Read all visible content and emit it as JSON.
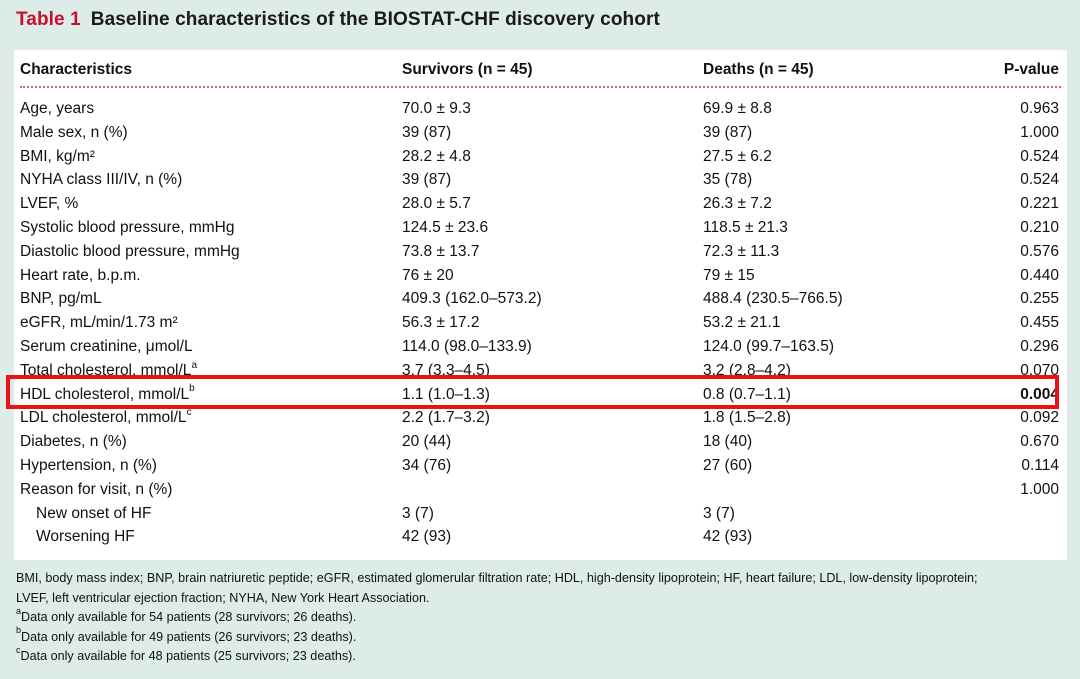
{
  "title": {
    "number": "Table 1",
    "text": "Baseline characteristics of the BIOSTAT-CHF discovery cohort"
  },
  "headers": {
    "characteristics": "Characteristics",
    "survivors": "Survivors (n = 45)",
    "deaths": "Deaths (n = 45)",
    "pvalue": "P-value"
  },
  "rows": [
    {
      "label": "Age, years",
      "survivors": "70.0 ± 9.3",
      "deaths": "69.9 ± 8.8",
      "p": "0.963"
    },
    {
      "label": "Male sex, n (%)",
      "survivors": "39 (87)",
      "deaths": "39 (87)",
      "p": "1.000"
    },
    {
      "label": "BMI, kg/m²",
      "survivors": "28.2 ± 4.8",
      "deaths": "27.5 ± 6.2",
      "p": "0.524"
    },
    {
      "label": "NYHA class III/IV, n (%)",
      "survivors": "39 (87)",
      "deaths": "35 (78)",
      "p": "0.524"
    },
    {
      "label": "LVEF, %",
      "survivors": "28.0 ± 5.7",
      "deaths": "26.3 ± 7.2",
      "p": "0.221"
    },
    {
      "label": "Systolic blood pressure, mmHg",
      "survivors": "124.5 ± 23.6",
      "deaths": "118.5 ± 21.3",
      "p": "0.210"
    },
    {
      "label": "Diastolic blood pressure, mmHg",
      "survivors": "73.8 ± 13.7",
      "deaths": "72.3 ± 11.3",
      "p": "0.576"
    },
    {
      "label": "Heart rate, b.p.m.",
      "survivors": "76 ± 20",
      "deaths": "79 ± 15",
      "p": "0.440"
    },
    {
      "label": "BNP, pg/mL",
      "survivors": "409.3 (162.0–573.2)",
      "deaths": "488.4 (230.5–766.5)",
      "p": "0.255"
    },
    {
      "label": "eGFR, mL/min/1.73 m²",
      "survivors": "56.3 ± 17.2",
      "deaths": "53.2 ± 21.1",
      "p": "0.455"
    },
    {
      "label": "Serum creatinine, μmol/L",
      "survivors": "114.0 (98.0–133.9)",
      "deaths": "124.0 (99.7–163.5)",
      "p": "0.296"
    },
    {
      "label": "Total cholesterol, mmol/L",
      "sup": "a",
      "survivors": "3.7 (3.3–4.5)",
      "deaths": "3.2 (2.8–4.2)",
      "p": "0.070"
    },
    {
      "label": "HDL cholesterol, mmol/L",
      "sup": "b",
      "survivors": "1.1 (1.0–1.3)",
      "deaths": "0.8 (0.7–1.1)",
      "p": "0.004",
      "bold_p": true
    },
    {
      "label": "LDL cholesterol, mmol/L",
      "sup": "c",
      "survivors": "2.2 (1.7–3.2)",
      "deaths": "1.8 (1.5–2.8)",
      "p": "0.092"
    },
    {
      "label": "Diabetes, n (%)",
      "survivors": "20 (44)",
      "deaths": "18 (40)",
      "p": "0.670"
    },
    {
      "label": "Hypertension, n (%)",
      "survivors": "34 (76)",
      "deaths": "27 (60)",
      "p": "0.114"
    },
    {
      "label": "Reason for visit, n (%)",
      "survivors": "",
      "deaths": "",
      "p": "1.000"
    },
    {
      "label": "New onset of HF",
      "indent": true,
      "survivors": "3 (7)",
      "deaths": "3 (7)",
      "p": ""
    },
    {
      "label": "Worsening HF",
      "indent": true,
      "survivors": "42 (93)",
      "deaths": "42 (93)",
      "p": ""
    }
  ],
  "footnotes": {
    "abbreviations_line1": "BMI, body mass index; BNP, brain natriuretic peptide; eGFR, estimated glomerular filtration rate; HDL, high-density lipoprotein; HF, heart failure; LDL, low-density lipoprotein;",
    "abbreviations_line2": "LVEF, left ventricular ejection fraction; NYHA, New York Heart Association.",
    "notes": [
      {
        "mark": "a",
        "text": "Data only available for 54 patients (28 survivors; 26 deaths)."
      },
      {
        "mark": "b",
        "text": "Data only available for 49 patients (26 survivors; 23 deaths)."
      },
      {
        "mark": "c",
        "text": "Data only available for 48 patients (25 survivors; 23 deaths)."
      }
    ]
  },
  "colors": {
    "background": "#ddebe9",
    "title_number": "#c8102e",
    "dotted_rule": "#e0607a",
    "highlight_box": "#ee1111"
  }
}
